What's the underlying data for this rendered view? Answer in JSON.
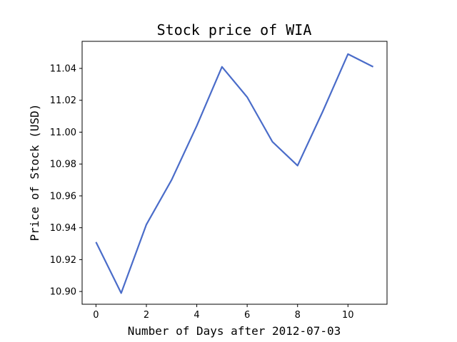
{
  "chart_data": {
    "type": "line",
    "title": "Stock price of WIA",
    "xlabel": "Number of Days after 2012-07-03",
    "ylabel": "Price of Stock (USD)",
    "x": [
      0,
      1,
      2,
      3,
      4,
      5,
      6,
      7,
      8,
      9,
      10,
      11
    ],
    "series": [
      {
        "values": [
          10.931,
          10.899,
          10.942,
          10.97,
          11.004,
          11.041,
          11.022,
          10.994,
          10.979,
          11.013,
          11.049,
          11.041
        ],
        "color": "#4a6cc9"
      }
    ],
    "xlim": [
      -0.55,
      11.55
    ],
    "ylim": [
      10.892,
      11.057
    ],
    "xticks": [
      0,
      2,
      4,
      6,
      8,
      10
    ],
    "xtick_labels": [
      "0",
      "2",
      "4",
      "6",
      "8",
      "10"
    ],
    "yticks": [
      10.9,
      10.92,
      10.94,
      10.96,
      10.98,
      11.0,
      11.02,
      11.04
    ],
    "ytick_labels": [
      "10.90",
      "10.92",
      "10.94",
      "10.96",
      "10.98",
      "11.00",
      "11.02",
      "11.04"
    ],
    "grid": false,
    "legend": false
  }
}
